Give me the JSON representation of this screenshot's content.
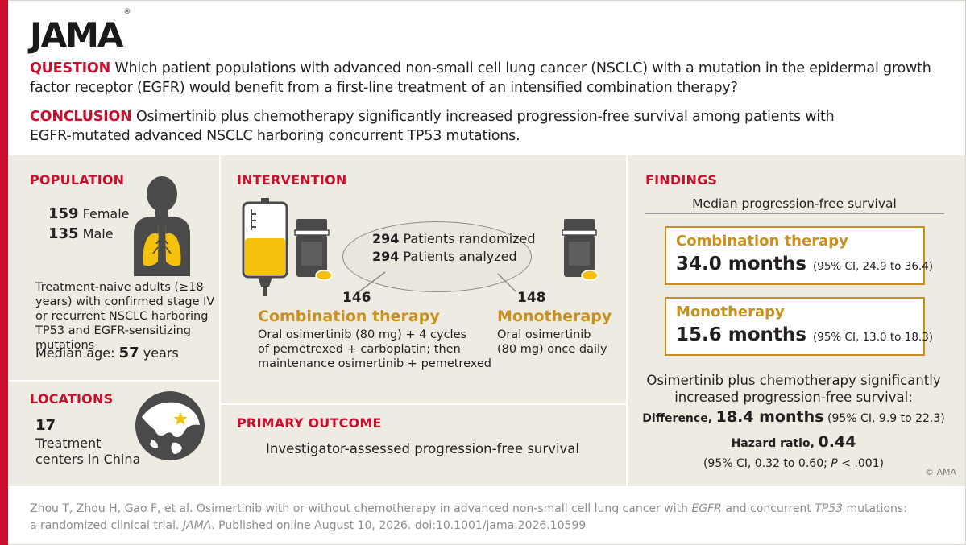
{
  "header": {
    "logo": "JAMA",
    "logo_mark": "®",
    "question_label": "QUESTION",
    "question_text": "Which patient populations with advanced non-small cell lung cancer (NSCLC) with a mutation in the epidermal growth factor receptor (EGFR) would benefit from a first-line treatment of an intensified combination therapy?",
    "conclusion_label": "CONCLUSION",
    "conclusion_text": "Osimertinib plus chemotherapy significantly increased progression-free survival among patients with EGFR-mutated advanced NSCLC harboring concurrent TP53 mutations."
  },
  "population": {
    "title": "POPULATION",
    "female_n": "159",
    "female_label": "Female",
    "male_n": "135",
    "male_label": "Male",
    "description": "Treatment-naive adults (≥18 years) with confirmed stage IV or recurrent NSCLC harboring TP53 and EGFR-sensitizing mutations",
    "median_age_label": "Median age:",
    "median_age_value": "57",
    "median_age_unit": "years"
  },
  "locations": {
    "title": "LOCATIONS",
    "count": "17",
    "line1": "Treatment",
    "line2": "centers in China"
  },
  "intervention": {
    "title": "INTERVENTION",
    "randomized_n": "294",
    "randomized_label": "Patients randomized",
    "analyzed_n": "294",
    "analyzed_label": "Patients analyzed",
    "arm1_n": "146",
    "arm1_title": "Combination therapy",
    "arm1_line1": "Oral osimertinib (80 mg) + 4 cycles",
    "arm1_line2": "of pemetrexed + carboplatin; then",
    "arm1_line3": "maintenance osimertinib + pemetrexed",
    "arm2_n": "148",
    "arm2_title": "Monotherapy",
    "arm2_line1": "Oral osimertinib",
    "arm2_line2": "(80 mg) once daily"
  },
  "primary_outcome": {
    "title": "PRIMARY OUTCOME",
    "text": "Investigator-assessed progression-free survival"
  },
  "findings": {
    "title": "FINDINGS",
    "subtitle": "Median progression-free survival",
    "box1_title": "Combination therapy",
    "box1_value": "34.0 months",
    "box1_ci": "(95% CI, 24.9 to 36.4)",
    "box2_title": "Monotherapy",
    "box2_value": "15.6 months",
    "box2_ci": "(95% CI, 13.0 to 18.3)",
    "summary_line1": "Osimertinib plus chemotherapy significantly",
    "summary_line2": "increased progression-free survival:",
    "difference_label": "Difference,",
    "difference_value": "18.4 months",
    "difference_ci": "(95% CI, 9.9 to 22.3)",
    "hr_label": "Hazard ratio,",
    "hr_value": "0.44",
    "hr_ci_pre": "(95% CI, 0.32 to 0.60;",
    "hr_p_letter": "P",
    "hr_p_rest": "< .001)"
  },
  "copyright": "© AMA",
  "citation": {
    "line1_a": "Zhou T, Zhou H, Gao F, et al. Osimertinib with or without chemotherapy in advanced non-small cell lung cancer with",
    "line1_b": "EGFR",
    "line1_c": "and concurrent",
    "line1_d": "TP53",
    "line1_e": "mutations:",
    "line2_a": "a randomized clinical trial.",
    "line2_b": "JAMA",
    "line2_c": ". Published online August 10, 2026. doi:10.1001/jama.2026.10599"
  },
  "colors": {
    "accent_red": "#c8102e",
    "accent_gold": "#c8901e",
    "panel_bg": "#eeebe3",
    "lung_yellow": "#f4c20d"
  },
  "icons": [
    "person-lungs-icon",
    "globe-china-icon",
    "iv-bag-icon",
    "pill-bottle-icon",
    "pill-icon"
  ]
}
